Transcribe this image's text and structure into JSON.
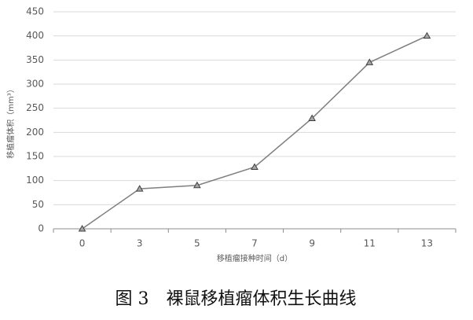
{
  "chart_data": {
    "type": "line",
    "caption": "图 3　裸鼠移植瘤体积生长曲线",
    "x_label": "移植瘤接种时间（d）",
    "y_label": "移植瘤体积（mm³）",
    "categories": [
      "0",
      "3",
      "5",
      "7",
      "9",
      "11",
      "13"
    ],
    "series": [
      {
        "name": "体积",
        "color": "#7f7f7f",
        "values": [
          0,
          83,
          90,
          128,
          229,
          345,
          400
        ]
      }
    ],
    "ylim": [
      0,
      450
    ],
    "yticks": [
      0,
      50,
      100,
      150,
      200,
      250,
      300,
      350,
      400,
      450
    ],
    "grid": true
  }
}
